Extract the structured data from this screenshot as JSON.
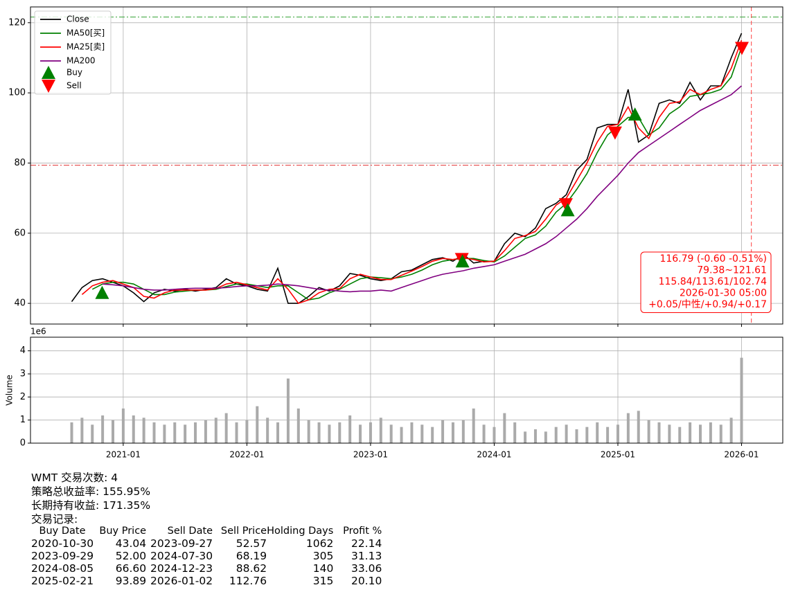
{
  "chart_data": [
    {
      "type": "line",
      "x": [
        "2020-08",
        "2020-09",
        "2020-10",
        "2020-11",
        "2020-12",
        "2021-01",
        "2021-02",
        "2021-03",
        "2021-04",
        "2021-05",
        "2021-06",
        "2021-07",
        "2021-08",
        "2021-09",
        "2021-10",
        "2021-11",
        "2021-12",
        "2022-01",
        "2022-02",
        "2022-03",
        "2022-04",
        "2022-05",
        "2022-06",
        "2022-07",
        "2022-08",
        "2022-09",
        "2022-10",
        "2022-11",
        "2022-12",
        "2023-01",
        "2023-02",
        "2023-03",
        "2023-04",
        "2023-05",
        "2023-06",
        "2023-07",
        "2023-08",
        "2023-09",
        "2023-10",
        "2023-11",
        "2023-12",
        "2024-01",
        "2024-02",
        "2024-03",
        "2024-04",
        "2024-05",
        "2024-06",
        "2024-07",
        "2024-08",
        "2024-09",
        "2024-10",
        "2024-11",
        "2024-12",
        "2025-01",
        "2025-02",
        "2025-03",
        "2025-04",
        "2025-05",
        "2025-06",
        "2025-07",
        "2025-08",
        "2025-09",
        "2025-10",
        "2025-11",
        "2025-12",
        "2026-01"
      ],
      "series": [
        {
          "name": "Close",
          "color": "#000000",
          "values": [
            40.5,
            44.5,
            46.5,
            47,
            46,
            45,
            43,
            40.5,
            43,
            44,
            43.5,
            44,
            43.5,
            44,
            44.5,
            47,
            45.5,
            45,
            44,
            43.5,
            50,
            40,
            40,
            42,
            44.5,
            43.5,
            45,
            48.5,
            48,
            47,
            46.5,
            47,
            49,
            49.5,
            51,
            52.5,
            53,
            52,
            54,
            51.5,
            52,
            52,
            57,
            60,
            59,
            61.5,
            67,
            68.5,
            71,
            78,
            81,
            90,
            91,
            91,
            101,
            86,
            88,
            97,
            98,
            97,
            103,
            98,
            102,
            102,
            110,
            117
          ]
        },
        {
          "name": "MA50[买]",
          "color": "#008000",
          "values": [
            null,
            null,
            44,
            45.5,
            46,
            46,
            45.5,
            44,
            42.5,
            42.5,
            43.2,
            43.5,
            43.8,
            43.8,
            44,
            44.8,
            45.5,
            45.5,
            45,
            44.5,
            45,
            45,
            43,
            41,
            41.5,
            43,
            44,
            45.5,
            47,
            47.5,
            47.3,
            47,
            47.5,
            48.3,
            49.5,
            51,
            52,
            52.5,
            52.8,
            52.8,
            52.2,
            51.8,
            53.5,
            56,
            58.5,
            59.5,
            62,
            66,
            68.5,
            72.5,
            77,
            83,
            88,
            90.5,
            93,
            93,
            88,
            90,
            94,
            96,
            99,
            99.5,
            100,
            101,
            104.5,
            113
          ]
        },
        {
          "name": "MA25[卖]",
          "color": "#ff0000",
          "values": [
            null,
            42.5,
            45,
            46,
            46.5,
            45.5,
            44.5,
            42,
            41.5,
            43,
            43.8,
            43.8,
            43.8,
            43.8,
            44.2,
            45.5,
            46,
            45.3,
            44.5,
            43.8,
            47,
            44,
            40,
            41,
            43,
            44,
            44.2,
            47,
            48.3,
            47.5,
            46.8,
            46.8,
            48,
            49.2,
            50.5,
            52,
            52.8,
            52.5,
            53,
            52.5,
            51.8,
            52,
            55,
            58.5,
            59.3,
            60.5,
            64,
            68,
            70,
            75,
            80,
            86,
            90.5,
            91,
            96,
            90,
            87,
            93,
            97,
            97.5,
            101,
            99.5,
            101,
            102,
            107,
            115
          ]
        },
        {
          "name": "MA200",
          "color": "#800080",
          "values": [
            null,
            null,
            null,
            45.5,
            45.3,
            45,
            44.5,
            44,
            43.8,
            43.8,
            44,
            44.2,
            44.3,
            44.3,
            44.3,
            44.5,
            44.8,
            45,
            45,
            45.2,
            45.5,
            45.3,
            45,
            44.5,
            44,
            43.8,
            43.5,
            43.3,
            43.5,
            43.5,
            43.8,
            43.5,
            44.5,
            45.5,
            46.5,
            47.5,
            48.3,
            48.8,
            49.3,
            50,
            50.5,
            51,
            52,
            53,
            54,
            55.5,
            57,
            59,
            61.5,
            64,
            67,
            70.5,
            73.5,
            76.5,
            80,
            83,
            85,
            87,
            89,
            91,
            93,
            95,
            96.5,
            98,
            99.5,
            102
          ]
        }
      ],
      "xlim": [
        "2020-04",
        "2026-05"
      ],
      "xticks": [
        "2021-01",
        "2022-01",
        "2023-01",
        "2024-01",
        "2025-01",
        "2026-01"
      ],
      "ylim": [
        34.1,
        124.5
      ],
      "yticks": [
        40,
        60,
        80,
        100,
        120
      ],
      "grid": true,
      "legend": "upper left",
      "hlines": [
        {
          "value": 79.38,
          "color": "#e03030"
        },
        {
          "value": 121.61,
          "color": "#30a030"
        }
      ],
      "vline": {
        "x": "2026-01-30",
        "color": "#ff4040"
      },
      "markers": {
        "buy": {
          "name": "Buy",
          "color": "#008000"
        },
        "sell": {
          "name": "Sell",
          "color": "#ff0000"
        }
      },
      "annotation": [
        "116.79 (-0.60 -0.51%)",
        "79.38~121.61",
        "115.84/113.61/102.74",
        "2026-01-30 05:00",
        "+0.05/中性/+0.94/+0.17"
      ]
    },
    {
      "type": "bar",
      "x": [
        "2020-08",
        "2020-09",
        "2020-10",
        "2020-11",
        "2020-12",
        "2021-01",
        "2021-02",
        "2021-03",
        "2021-04",
        "2021-05",
        "2021-06",
        "2021-07",
        "2021-08",
        "2021-09",
        "2021-10",
        "2021-11",
        "2021-12",
        "2022-01",
        "2022-02",
        "2022-03",
        "2022-04",
        "2022-05",
        "2022-06",
        "2022-07",
        "2022-08",
        "2022-09",
        "2022-10",
        "2022-11",
        "2022-12",
        "2023-01",
        "2023-02",
        "2023-03",
        "2023-04",
        "2023-05",
        "2023-06",
        "2023-07",
        "2023-08",
        "2023-09",
        "2023-10",
        "2023-11",
        "2023-12",
        "2024-01",
        "2024-02",
        "2024-03",
        "2024-04",
        "2024-05",
        "2024-06",
        "2024-07",
        "2024-08",
        "2024-09",
        "2024-10",
        "2024-11",
        "2024-12",
        "2025-01",
        "2025-02",
        "2025-03",
        "2025-04",
        "2025-05",
        "2025-06",
        "2025-07",
        "2025-08",
        "2025-09",
        "2025-10",
        "2025-11",
        "2025-12",
        "2026-01"
      ],
      "values": [
        0.9,
        1.1,
        0.8,
        1.2,
        1.0,
        1.5,
        1.2,
        1.1,
        0.9,
        0.8,
        0.9,
        0.8,
        0.9,
        1.0,
        1.1,
        1.3,
        0.9,
        1.0,
        1.6,
        1.1,
        0.9,
        2.8,
        1.5,
        1.0,
        0.9,
        0.8,
        0.9,
        1.2,
        0.8,
        0.9,
        1.1,
        0.8,
        0.7,
        0.9,
        0.8,
        0.7,
        1.0,
        0.9,
        1.0,
        1.5,
        0.8,
        0.7,
        1.3,
        0.9,
        0.5,
        0.6,
        0.5,
        0.7,
        0.8,
        0.6,
        0.7,
        0.9,
        0.7,
        0.8,
        1.3,
        1.4,
        1.0,
        0.9,
        0.8,
        0.7,
        0.9,
        0.8,
        0.9,
        0.8,
        1.1,
        3.7
      ],
      "color": "#aaaaaa",
      "ylabel": "Volume",
      "offset_label": "1e6",
      "xlim": [
        "2020-04",
        "2026-05"
      ],
      "xticks": [
        "2021-01",
        "2022-01",
        "2023-01",
        "2024-01",
        "2025-01",
        "2026-01"
      ],
      "ylim": [
        0,
        4.59
      ],
      "yticks": [
        0,
        1,
        2,
        3,
        4
      ],
      "grid": true
    }
  ],
  "summary": {
    "lines": [
      "WMT 交易次数: 4",
      "策略总收益率: 155.95%",
      "长期持有收益: 171.35%",
      "交易记录:"
    ],
    "table": {
      "columns": [
        "Buy Date",
        "Buy Price",
        "Sell Date",
        "Sell Price",
        "Holding Days",
        "Profit %"
      ],
      "rows": [
        [
          "2020-10-30",
          "43.04",
          "2023-09-27",
          "52.57",
          "1062",
          "22.14"
        ],
        [
          "2023-09-29",
          "52.00",
          "2024-07-30",
          "68.19",
          "305",
          "31.13"
        ],
        [
          "2024-08-05",
          "66.60",
          "2024-12-23",
          "88.62",
          "140",
          "33.06"
        ],
        [
          "2025-02-21",
          "93.89",
          "2026-01-02",
          "112.76",
          "315",
          "20.10"
        ]
      ]
    }
  }
}
